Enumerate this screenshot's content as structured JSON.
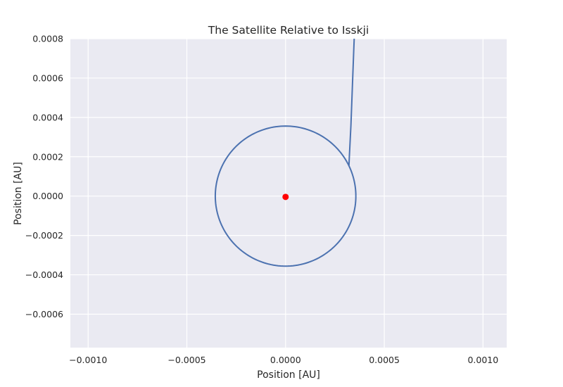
{
  "chart_data": {
    "type": "line",
    "title": "The Satellite Relative to Isskji",
    "xlabel": "Position [AU]",
    "ylabel": "Position [AU]",
    "xlim": [
      -0.00109,
      0.00112
    ],
    "ylim": [
      -0.00077,
      0.0008
    ],
    "xticks": [
      -0.001,
      -0.0005,
      0.0,
      0.0005,
      0.001
    ],
    "xtick_labels": [
      "−0.0010",
      "−0.0005",
      "0.0000",
      "0.0005",
      "0.0010"
    ],
    "yticks": [
      -0.0006,
      -0.0004,
      -0.0002,
      0.0,
      0.0002,
      0.0004,
      0.0006,
      0.0008
    ],
    "ytick_labels": [
      "−0.0006",
      "−0.0004",
      "−0.0002",
      "0.0000",
      "0.0002",
      "0.0004",
      "0.0006",
      "0.0008"
    ],
    "grid": true,
    "colors": {
      "background": "#eaeaf2",
      "grid": "#ffffff",
      "orbit": "#4c72b0",
      "planet": "#ff0000"
    },
    "series": [
      {
        "kind": "orbit-circle",
        "center": [
          0.0,
          0.0
        ],
        "radius": 0.000356
      },
      {
        "kind": "approach-trajectory",
        "x": [
          0.000321,
          0.000323,
          0.000327,
          0.000331,
          0.000334,
          0.000337,
          0.00034,
          0.000343,
          0.000346,
          0.000348
        ],
        "y": [
          0.000155,
          0.0002,
          0.00028,
          0.00036,
          0.00044,
          0.00052,
          0.0006,
          0.00068,
          0.00076,
          0.00081
        ]
      },
      {
        "kind": "planet-marker",
        "x": [
          0.0
        ],
        "y": [
          -4e-06
        ]
      }
    ]
  }
}
